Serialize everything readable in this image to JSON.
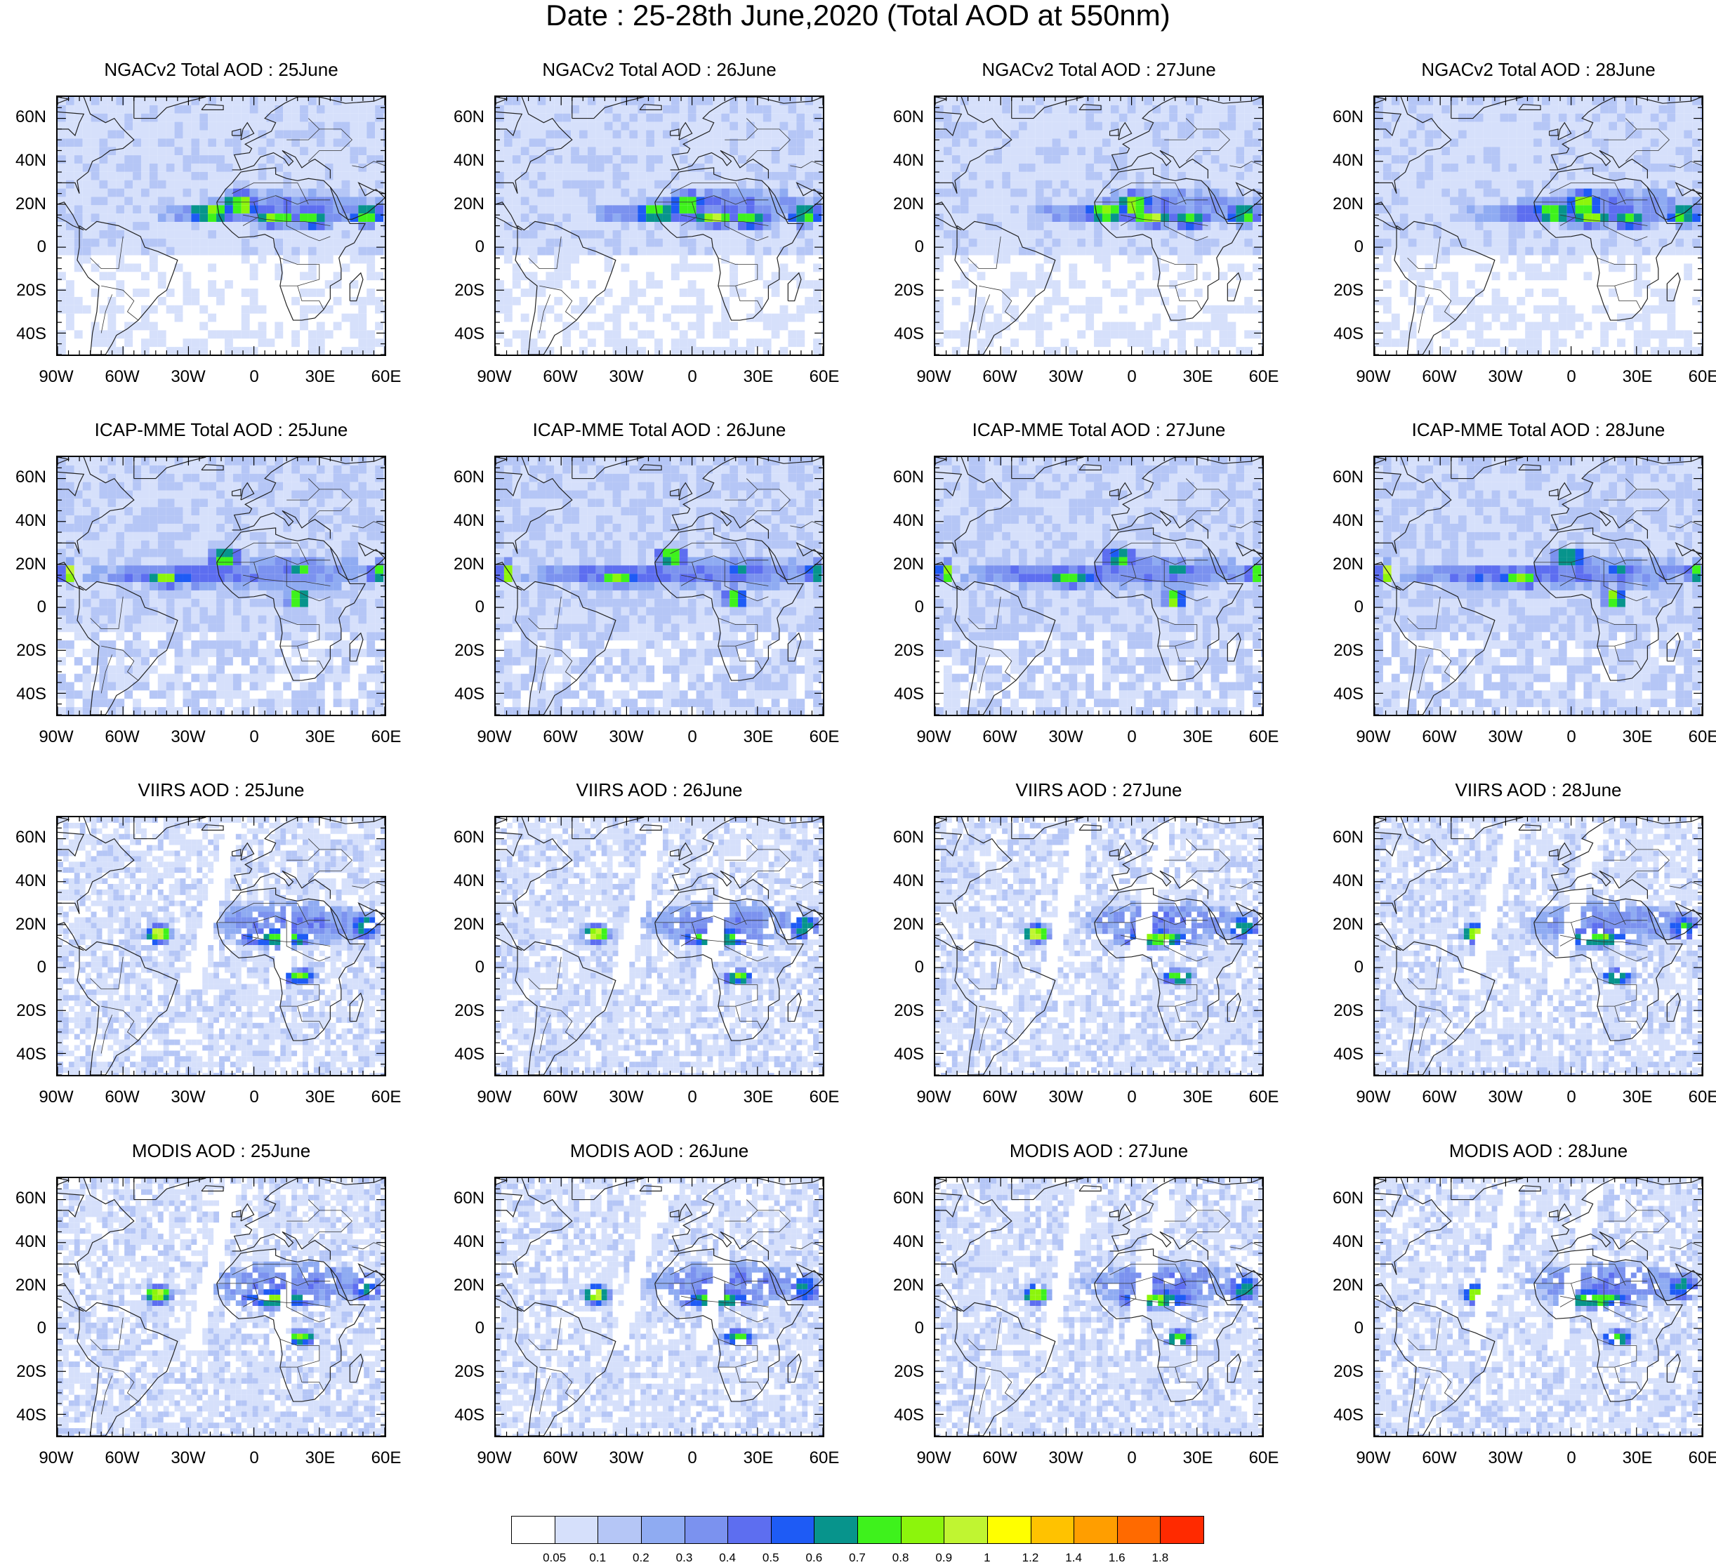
{
  "title": "Date : 25-28th June,2020 (Total AOD at 550nm)",
  "lat_ticks": [
    "60N",
    "40N",
    "20N",
    "0",
    "20S",
    "40S"
  ],
  "lon_ticks": [
    "90W",
    "60W",
    "30W",
    "0",
    "30E",
    "60E"
  ],
  "panels": [
    {
      "title": "NGACv2 Total AOD : 25June",
      "kind": "model",
      "day": 0
    },
    {
      "title": "NGACv2 Total AOD : 26June",
      "kind": "model",
      "day": 1
    },
    {
      "title": "NGACv2 Total AOD : 27June",
      "kind": "model",
      "day": 2
    },
    {
      "title": "NGACv2 Total AOD : 28June",
      "kind": "model",
      "day": 3
    },
    {
      "title": "ICAP-MME Total AOD : 25June",
      "kind": "icap",
      "day": 0
    },
    {
      "title": "ICAP-MME Total AOD : 26June",
      "kind": "icap",
      "day": 1
    },
    {
      "title": "ICAP-MME Total AOD : 27June",
      "kind": "icap",
      "day": 2
    },
    {
      "title": "ICAP-MME Total AOD : 28June",
      "kind": "icap",
      "day": 3
    },
    {
      "title": "VIIRS AOD : 25June",
      "kind": "sat",
      "day": 0
    },
    {
      "title": "VIIRS AOD : 26June",
      "kind": "sat",
      "day": 1
    },
    {
      "title": "VIIRS AOD : 27June",
      "kind": "sat",
      "day": 2
    },
    {
      "title": "VIIRS AOD : 28June",
      "kind": "sat",
      "day": 3
    },
    {
      "title": "MODIS AOD : 25June",
      "kind": "sat",
      "day": 0
    },
    {
      "title": "MODIS AOD : 26June",
      "kind": "sat",
      "day": 1
    },
    {
      "title": "MODIS AOD : 27June",
      "kind": "sat",
      "day": 2
    },
    {
      "title": "MODIS AOD : 28June",
      "kind": "sat",
      "day": 3
    }
  ],
  "colorbar": {
    "colors": [
      "#ffffff",
      "#d6e0fb",
      "#b5c6f6",
      "#8fabf2",
      "#7b92ef",
      "#5d6ef0",
      "#1e5bf5",
      "#07948c",
      "#3ef21c",
      "#8cf50c",
      "#c0f531",
      "#ffff00",
      "#ffc200",
      "#ff9e00",
      "#ff6a00",
      "#ff2a00"
    ],
    "labels": [
      "0.05",
      "0.1",
      "0.2",
      "0.3",
      "0.4",
      "0.5",
      "0.6",
      "0.7",
      "0.8",
      "0.9",
      "1",
      "1.2",
      "1.4",
      "1.6",
      "1.8"
    ]
  }
}
